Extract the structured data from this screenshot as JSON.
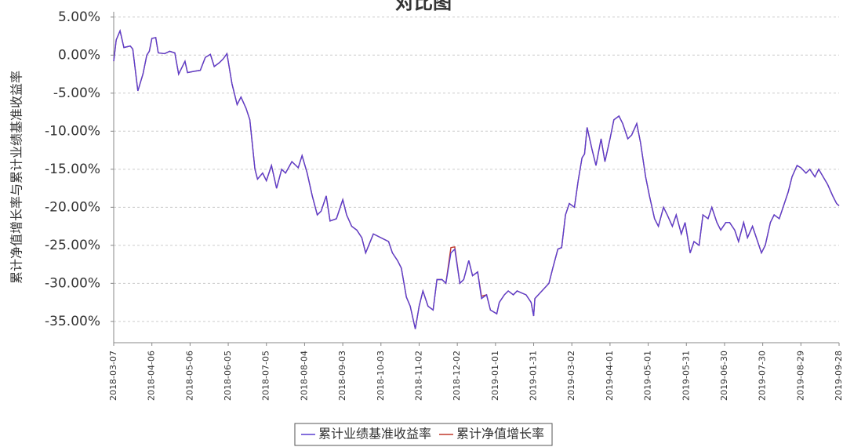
{
  "chart_data": {
    "type": "line",
    "title": "对比图",
    "y_label": "累计净值增长率与累计业绩基准收益率",
    "x": [
      "2018-03-07",
      "2018-03-09",
      "2018-03-12",
      "2018-03-15",
      "2018-03-20",
      "2018-03-22",
      "2018-03-26",
      "2018-03-30",
      "2018-04-02",
      "2018-04-04",
      "2018-04-06",
      "2018-04-09",
      "2018-04-11",
      "2018-04-16",
      "2018-04-20",
      "2018-04-24",
      "2018-04-27",
      "2018-05-02",
      "2018-05-04",
      "2018-05-10",
      "2018-05-14",
      "2018-05-18",
      "2018-05-22",
      "2018-05-25",
      "2018-05-29",
      "2018-06-01",
      "2018-06-04",
      "2018-06-08",
      "2018-06-12",
      "2018-06-15",
      "2018-06-19",
      "2018-06-22",
      "2018-06-26",
      "2018-06-28",
      "2018-07-02",
      "2018-07-05",
      "2018-07-09",
      "2018-07-13",
      "2018-07-17",
      "2018-07-20",
      "2018-07-25",
      "2018-07-30",
      "2018-08-02",
      "2018-08-06",
      "2018-08-10",
      "2018-08-14",
      "2018-08-17",
      "2018-08-21",
      "2018-08-24",
      "2018-08-29",
      "2018-09-03",
      "2018-09-06",
      "2018-09-10",
      "2018-09-14",
      "2018-09-18",
      "2018-09-21",
      "2018-09-27",
      "2018-10-09",
      "2018-10-12",
      "2018-10-16",
      "2018-10-19",
      "2018-10-23",
      "2018-10-26",
      "2018-10-30",
      "2018-11-02",
      "2018-11-05",
      "2018-11-09",
      "2018-11-13",
      "2018-11-16",
      "2018-11-20",
      "2018-11-23",
      "2018-11-27",
      "2018-11-30",
      "2018-12-04",
      "2018-12-07",
      "2018-12-11",
      "2018-12-14",
      "2018-12-18",
      "2018-12-21",
      "2018-12-25",
      "2018-12-28",
      "2019-01-02",
      "2019-01-04",
      "2019-01-08",
      "2019-01-11",
      "2019-01-15",
      "2019-01-18",
      "2019-01-22",
      "2019-01-25",
      "2019-01-29",
      "2019-01-31",
      "2019-02-01",
      "2019-02-12",
      "2019-02-15",
      "2019-02-19",
      "2019-02-22",
      "2019-02-25",
      "2019-02-28",
      "2019-03-04",
      "2019-03-07",
      "2019-03-10",
      "2019-03-12",
      "2019-03-14",
      "2019-03-18",
      "2019-03-21",
      "2019-03-25",
      "2019-03-28",
      "2019-04-01",
      "2019-04-04",
      "2019-04-08",
      "2019-04-11",
      "2019-04-15",
      "2019-04-18",
      "2019-04-22",
      "2019-04-25",
      "2019-04-29",
      "2019-05-02",
      "2019-05-06",
      "2019-05-09",
      "2019-05-13",
      "2019-05-16",
      "2019-05-20",
      "2019-05-23",
      "2019-05-27",
      "2019-05-30",
      "2019-06-03",
      "2019-06-06",
      "2019-06-10",
      "2019-06-13",
      "2019-06-17",
      "2019-06-20",
      "2019-06-24",
      "2019-06-27",
      "2019-07-01",
      "2019-07-04",
      "2019-07-08",
      "2019-07-11",
      "2019-07-15",
      "2019-07-18",
      "2019-07-22",
      "2019-07-25",
      "2019-07-29",
      "2019-08-01",
      "2019-08-05",
      "2019-08-08",
      "2019-08-12",
      "2019-08-15",
      "2019-08-19",
      "2019-08-22",
      "2019-08-26",
      "2019-08-29",
      "2019-09-02",
      "2019-09-05",
      "2019-09-09",
      "2019-09-12",
      "2019-09-19",
      "2019-09-23",
      "2019-09-26",
      "2019-09-28"
    ],
    "series": [
      {
        "name": "累计业绩基准收益率",
        "color": "#5a3fd0",
        "values": [
          -0.8,
          2.0,
          3.2,
          1.0,
          1.2,
          0.8,
          -4.7,
          -2.5,
          0,
          0.5,
          2.2,
          2.3,
          0.3,
          0.2,
          0.5,
          0.3,
          -2.5,
          -0.8,
          -2.3,
          -2.1,
          -2.0,
          -0.3,
          0.1,
          -1.5,
          -1.0,
          -0.5,
          0.2,
          -3.8,
          -6.5,
          -5.5,
          -7.0,
          -8.5,
          -15.0,
          -16.3,
          -15.5,
          -16.5,
          -14.5,
          -17.5,
          -15.0,
          -15.5,
          -14.0,
          -14.8,
          -13.2,
          -15.5,
          -18.5,
          -21.0,
          -20.5,
          -18.5,
          -21.8,
          -21.5,
          -19.0,
          -21.0,
          -22.5,
          -23.0,
          -24.0,
          -26.0,
          -23.5,
          -24.5,
          -26.0,
          -27.0,
          -28.0,
          -31.8,
          -33.0,
          -36.0,
          -33.0,
          -31.0,
          -33.0,
          -33.5,
          -29.5,
          -29.5,
          -30.0,
          -26.0,
          -25.5,
          -30.0,
          -29.5,
          -27.0,
          -29.0,
          -28.5,
          -32.0,
          -31.5,
          -33.5,
          -34.0,
          -32.5,
          -31.5,
          -31.0,
          -31.5,
          -31.0,
          -31.3,
          -31.5,
          -32.5,
          -34.3,
          -32.0,
          -30.0,
          -28.0,
          -25.5,
          -25.3,
          -21.0,
          -19.5,
          -20.0,
          -16.5,
          -13.5,
          -13.0,
          -9.5,
          -12.5,
          -14.5,
          -11.0,
          -14.0,
          -11.0,
          -8.5,
          -8.0,
          -9.0,
          -11.0,
          -10.5,
          -9.0,
          -11.5,
          -16.0,
          -18.5,
          -21.5,
          -22.5,
          -20.0,
          -21.0,
          -22.5,
          -21.0,
          -23.5,
          -22.0,
          -26.0,
          -24.5,
          -25.0,
          -21.0,
          -21.5,
          -20.0,
          -22.0,
          -23.0,
          -22.0,
          -22.0,
          -23.0,
          -24.5,
          -22.0,
          -24.0,
          -22.5,
          -24.0,
          -26.0,
          -25.0,
          -22.0,
          -21.0,
          -21.5,
          -20.0,
          -18.0,
          -16.0,
          -14.5,
          -14.8,
          -15.5,
          -15.0,
          -16.0,
          -15.0,
          -17.0,
          -18.5,
          -19.5,
          -19.8
        ]
      },
      {
        "name": "累计净值增长率",
        "color": "#c0392b",
        "values": [
          -0.8,
          2.0,
          3.2,
          1.0,
          1.2,
          0.8,
          -4.7,
          -2.5,
          0,
          0.5,
          2.2,
          2.3,
          0.3,
          0.2,
          0.5,
          0.3,
          -2.5,
          -0.8,
          -2.3,
          -2.1,
          -2.0,
          -0.3,
          0.1,
          -1.5,
          -1.0,
          -0.5,
          0.2,
          -3.8,
          -6.5,
          -5.5,
          -7.0,
          -8.5,
          -15.0,
          -16.3,
          -15.5,
          -16.5,
          -14.5,
          -17.5,
          -15.0,
          -15.5,
          -14.0,
          -14.8,
          -13.2,
          -15.5,
          -18.5,
          -21.0,
          -20.5,
          -18.5,
          -21.8,
          -21.5,
          -19.0,
          -21.0,
          -22.5,
          -23.0,
          -24.0,
          -26.0,
          -23.5,
          -24.5,
          -26.0,
          -27.0,
          -28.0,
          -31.8,
          -33.0,
          -36.0,
          -33.0,
          -31.0,
          -33.0,
          -33.5,
          -29.5,
          -29.5,
          -30.0,
          -25.3,
          -25.2,
          -30.0,
          -29.5,
          -27.0,
          -29.0,
          -28.5,
          -31.7,
          -31.5,
          -33.5,
          -34.0,
          -32.5,
          -31.5,
          -31.0,
          -31.5,
          -31.0,
          -31.3,
          -31.5,
          -32.5,
          -34.3,
          -32.0,
          -30.0,
          -28.0,
          -25.5,
          -25.3,
          -21.0,
          -19.5,
          -20.0,
          -16.5,
          -13.5,
          -13.0,
          -9.5,
          -12.5,
          -14.5,
          -11.0,
          -14.0,
          -11.0,
          -8.5,
          -8.0,
          -9.0,
          -11.0,
          -10.5,
          -9.0,
          -11.5,
          -16.0,
          -18.5,
          -21.5,
          -22.5,
          -20.0,
          -21.0,
          -22.5,
          -21.0,
          -23.5,
          -22.0,
          -26.0,
          -24.5,
          -25.0,
          -21.0,
          -21.5,
          -20.0,
          -22.0,
          -23.0,
          -22.0,
          -22.0,
          -23.0,
          -24.5,
          -22.0,
          -24.0,
          -22.5,
          -24.0,
          -26.0,
          -25.0,
          -22.0,
          -21.0,
          -21.5,
          -20.0,
          -18.0,
          -16.0,
          -14.5,
          -14.8,
          -15.5,
          -15.0,
          -16.0,
          -15.0,
          -17.0,
          -18.5,
          -19.5,
          -19.8
        ]
      }
    ],
    "xlim": [
      "2018-03-07",
      "2019-09-28"
    ],
    "xticks": [
      "2018-03-07",
      "2018-04-06",
      "2018-05-06",
      "2018-06-05",
      "2018-07-05",
      "2018-08-04",
      "2018-09-03",
      "2018-10-03",
      "2018-11-02",
      "2018-12-02",
      "2019-01-01",
      "2019-01-31",
      "2019-03-02",
      "2019-04-01",
      "2019-05-01",
      "2019-05-31",
      "2019-06-30",
      "2019-07-30",
      "2019-08-29",
      "2019-09-28"
    ],
    "ylim": [
      -37.8,
      5.7
    ],
    "yticks": [
      {
        "value": 5,
        "label": "5.00%"
      },
      {
        "value": 0,
        "label": "0.00%"
      },
      {
        "value": -5,
        "label": "-5.00%"
      },
      {
        "value": -10,
        "label": "-10.00%"
      },
      {
        "value": -15,
        "label": "-15.00%"
      },
      {
        "value": -20,
        "label": "-20.00%"
      },
      {
        "value": -25,
        "label": "-25.00%"
      },
      {
        "value": -30,
        "label": "-30.00%"
      },
      {
        "value": -35,
        "label": "-35.00%"
      }
    ],
    "grid": true
  }
}
